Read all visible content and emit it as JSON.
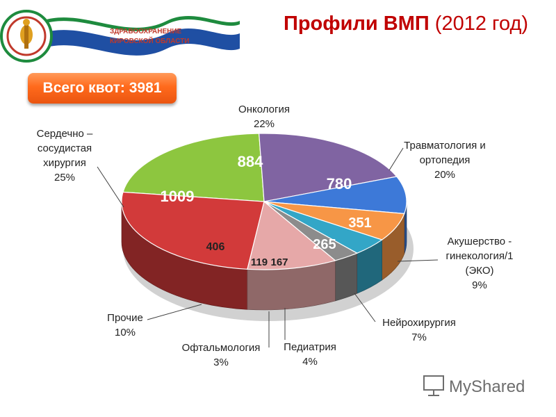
{
  "header": {
    "title_main": "Профили ВМП",
    "title_year": "(2012 год)",
    "logo_text_line1": "ЗДРАВООХРАНЕНИЕ",
    "logo_text_line2": "КИРОВСКОЙ ОБЛАСТИ"
  },
  "quota": {
    "label": "Всего квот: 3981"
  },
  "chart_data": {
    "type": "pie",
    "total": 3981,
    "slices": [
      {
        "name_lines": [
          "Онкология"
        ],
        "percent": "22%",
        "value": 884,
        "color": "#8dc63f"
      },
      {
        "name_lines": [
          "Травматология и",
          "ортопедия"
        ],
        "percent": "20%",
        "value": 780,
        "color": "#8064a2"
      },
      {
        "name_lines": [
          "Акушерство -",
          "гинекология/1",
          "(ЭКО)"
        ],
        "percent": "9%",
        "value": 351,
        "color": "#3d79d8"
      },
      {
        "name_lines": [
          "Нейрохирургия"
        ],
        "percent": "7%",
        "value": 265,
        "color": "#f79646"
      },
      {
        "name_lines": [
          "Педиатрия"
        ],
        "percent": "4%",
        "value": 167,
        "color": "#33a6c7"
      },
      {
        "name_lines": [
          "Офтальмология"
        ],
        "percent": "3%",
        "value": 119,
        "color": "#8c8c8c"
      },
      {
        "name_lines": [
          "Прочие"
        ],
        "percent": "10%",
        "value": 406,
        "color": "#e6a8a8"
      },
      {
        "name_lines": [
          "Сердечно –",
          "сосудистая",
          "хирургия"
        ],
        "percent": "25%",
        "value": 1009,
        "color": "#d23a3a"
      }
    ]
  },
  "watermark": {
    "text": "MyShared"
  }
}
